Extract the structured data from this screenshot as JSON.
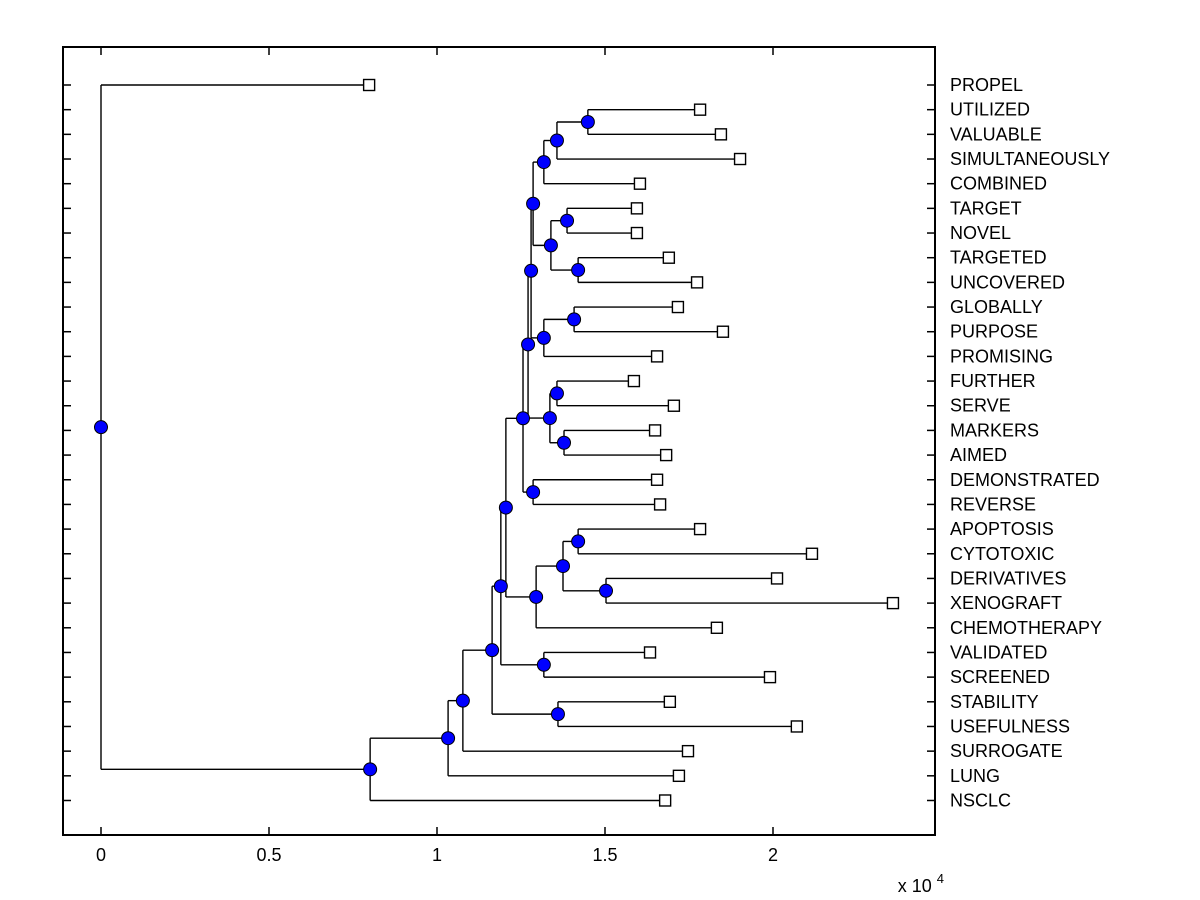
{
  "figure": {
    "background": "#ffffff"
  },
  "plot_style": {
    "border_color": "#000000",
    "line_color": "#000000",
    "branch_marker": {
      "shape": "circle",
      "fill": "#0000ff",
      "edge": "#000000"
    },
    "leaf_marker": {
      "shape": "square",
      "fill": "#ffffff",
      "edge": "#000000"
    }
  },
  "x_axis": {
    "tick_labels": [
      "0",
      "0.5",
      "1",
      "1.5",
      "2"
    ],
    "tick_values": [
      0,
      5000,
      10000,
      15000,
      20000
    ],
    "multiplier_text": "x 10",
    "multiplier_exponent": "4",
    "range": [
      -1130,
      24820
    ]
  },
  "chart_data": {
    "type": "dendrogram",
    "orientation": "left-to-right",
    "unit_note": "distances in axis units (axis shown x 10^4)",
    "leaf_order": [
      "PROPEL",
      "UTILIZED",
      "VALUABLE",
      "SIMULTANEOUSLY",
      "COMBINED",
      "TARGET",
      "NOVEL",
      "TARGETED",
      "UNCOVERED",
      "GLOBALLY",
      "PURPOSE",
      "PROMISING",
      "FURTHER",
      "SERVE",
      "MARKERS",
      "AIMED",
      "DEMONSTRATED",
      "REVERSE",
      "APOPTOSIS",
      "CYTOTOXIC",
      "DERIVATIVES",
      "XENOGRAFT",
      "CHEMOTHERAPY",
      "VALIDATED",
      "SCREENED",
      "STABILITY",
      "USEFULNESS",
      "SURROGATE",
      "LUNG",
      "NSCLC"
    ],
    "leaf_distances": [
      7980,
      17830,
      18450,
      19020,
      16040,
      15950,
      15950,
      16900,
      17740,
      17170,
      18510,
      16550,
      15860,
      17050,
      16490,
      16820,
      16550,
      16640,
      17830,
      21160,
      20120,
      23570,
      18330,
      16340,
      19910,
      16930,
      20710,
      17470,
      17200,
      16790
    ],
    "tree": {
      "d": 0,
      "children": [
        {
          "leaf": "PROPEL",
          "d": 7980
        },
        {
          "d": 8010,
          "children": [
            {
              "d": 10330,
              "children": [
                {
                  "d": 10770,
                  "children": [
                    {
                      "d": 11640,
                      "children": [
                        {
                          "d": 11900,
                          "children": [
                            {
                              "d": 12050,
                              "children": [
                                {
                                  "d": 12560,
                                  "children": [
                                    {
                                      "d": 12710,
                                      "children": [
                                        {
                                          "d": 12800,
                                          "children": [
                                            {
                                              "d": 12860,
                                              "children": [
                                                {
                                                  "d": 13180,
                                                  "children": [
                                                    {
                                                      "d": 13570,
                                                      "children": [
                                                        {
                                                          "d": 14490,
                                                          "children": [
                                                            {
                                                              "leaf": "UTILIZED",
                                                              "d": 17830
                                                            },
                                                            {
                                                              "leaf": "VALUABLE",
                                                              "d": 18450
                                                            }
                                                          ]
                                                        },
                                                        {
                                                          "leaf": "SIMULTANEOUSLY",
                                                          "d": 19020
                                                        }
                                                      ]
                                                    },
                                                    {
                                                      "leaf": "COMBINED",
                                                      "d": 16040
                                                    }
                                                  ]
                                                },
                                                {
                                                  "d": 13390,
                                                  "children": [
                                                    {
                                                      "d": 13870,
                                                      "children": [
                                                        {
                                                          "leaf": "TARGET",
                                                          "d": 15950
                                                        },
                                                        {
                                                          "leaf": "NOVEL",
                                                          "d": 15950
                                                        }
                                                      ]
                                                    },
                                                    {
                                                      "d": 14200,
                                                      "children": [
                                                        {
                                                          "leaf": "TARGETED",
                                                          "d": 16900
                                                        },
                                                        {
                                                          "leaf": "UNCOVERED",
                                                          "d": 17740
                                                        }
                                                      ]
                                                    }
                                                  ]
                                                }
                                              ]
                                            },
                                            {
                                              "d": 13180,
                                              "children": [
                                                {
                                                  "d": 14080,
                                                  "children": [
                                                    {
                                                      "leaf": "GLOBALLY",
                                                      "d": 17170
                                                    },
                                                    {
                                                      "leaf": "PURPOSE",
                                                      "d": 18510
                                                    }
                                                  ]
                                                },
                                                {
                                                  "leaf": "PROMISING",
                                                  "d": 16550
                                                }
                                              ]
                                            }
                                          ]
                                        },
                                        {
                                          "d": 13360,
                                          "children": [
                                            {
                                              "d": 13570,
                                              "children": [
                                                {
                                                  "leaf": "FURTHER",
                                                  "d": 15860
                                                },
                                                {
                                                  "leaf": "SERVE",
                                                  "d": 17050
                                                }
                                              ]
                                            },
                                            {
                                              "d": 13780,
                                              "children": [
                                                {
                                                  "leaf": "MARKERS",
                                                  "d": 16490
                                                },
                                                {
                                                  "leaf": "AIMED",
                                                  "d": 16820
                                                }
                                              ]
                                            }
                                          ]
                                        }
                                      ]
                                    },
                                    {
                                      "d": 12860,
                                      "children": [
                                        {
                                          "leaf": "DEMONSTRATED",
                                          "d": 16550
                                        },
                                        {
                                          "leaf": "REVERSE",
                                          "d": 16640
                                        }
                                      ]
                                    }
                                  ]
                                },
                                {
                                  "d": 12950,
                                  "children": [
                                    {
                                      "d": 13750,
                                      "children": [
                                        {
                                          "d": 14200,
                                          "children": [
                                            {
                                              "leaf": "APOPTOSIS",
                                              "d": 17830
                                            },
                                            {
                                              "leaf": "CYTOTOXIC",
                                              "d": 21160
                                            }
                                          ]
                                        },
                                        {
                                          "d": 15030,
                                          "children": [
                                            {
                                              "leaf": "DERIVATIVES",
                                              "d": 20120
                                            },
                                            {
                                              "leaf": "XENOGRAFT",
                                              "d": 23570
                                            }
                                          ]
                                        }
                                      ]
                                    },
                                    {
                                      "leaf": "CHEMOTHERAPY",
                                      "d": 18330
                                    }
                                  ]
                                }
                              ]
                            },
                            {
                              "d": 13180,
                              "children": [
                                {
                                  "leaf": "VALIDATED",
                                  "d": 16340
                                },
                                {
                                  "leaf": "SCREENED",
                                  "d": 19910
                                }
                              ]
                            }
                          ]
                        },
                        {
                          "d": 13600,
                          "children": [
                            {
                              "leaf": "STABILITY",
                              "d": 16930
                            },
                            {
                              "leaf": "USEFULNESS",
                              "d": 20710
                            }
                          ]
                        }
                      ]
                    },
                    {
                      "leaf": "SURROGATE",
                      "d": 17470
                    }
                  ]
                },
                {
                  "leaf": "LUNG",
                  "d": 17200
                }
              ]
            },
            {
              "leaf": "NSCLC",
              "d": 16790
            }
          ]
        }
      ]
    }
  }
}
